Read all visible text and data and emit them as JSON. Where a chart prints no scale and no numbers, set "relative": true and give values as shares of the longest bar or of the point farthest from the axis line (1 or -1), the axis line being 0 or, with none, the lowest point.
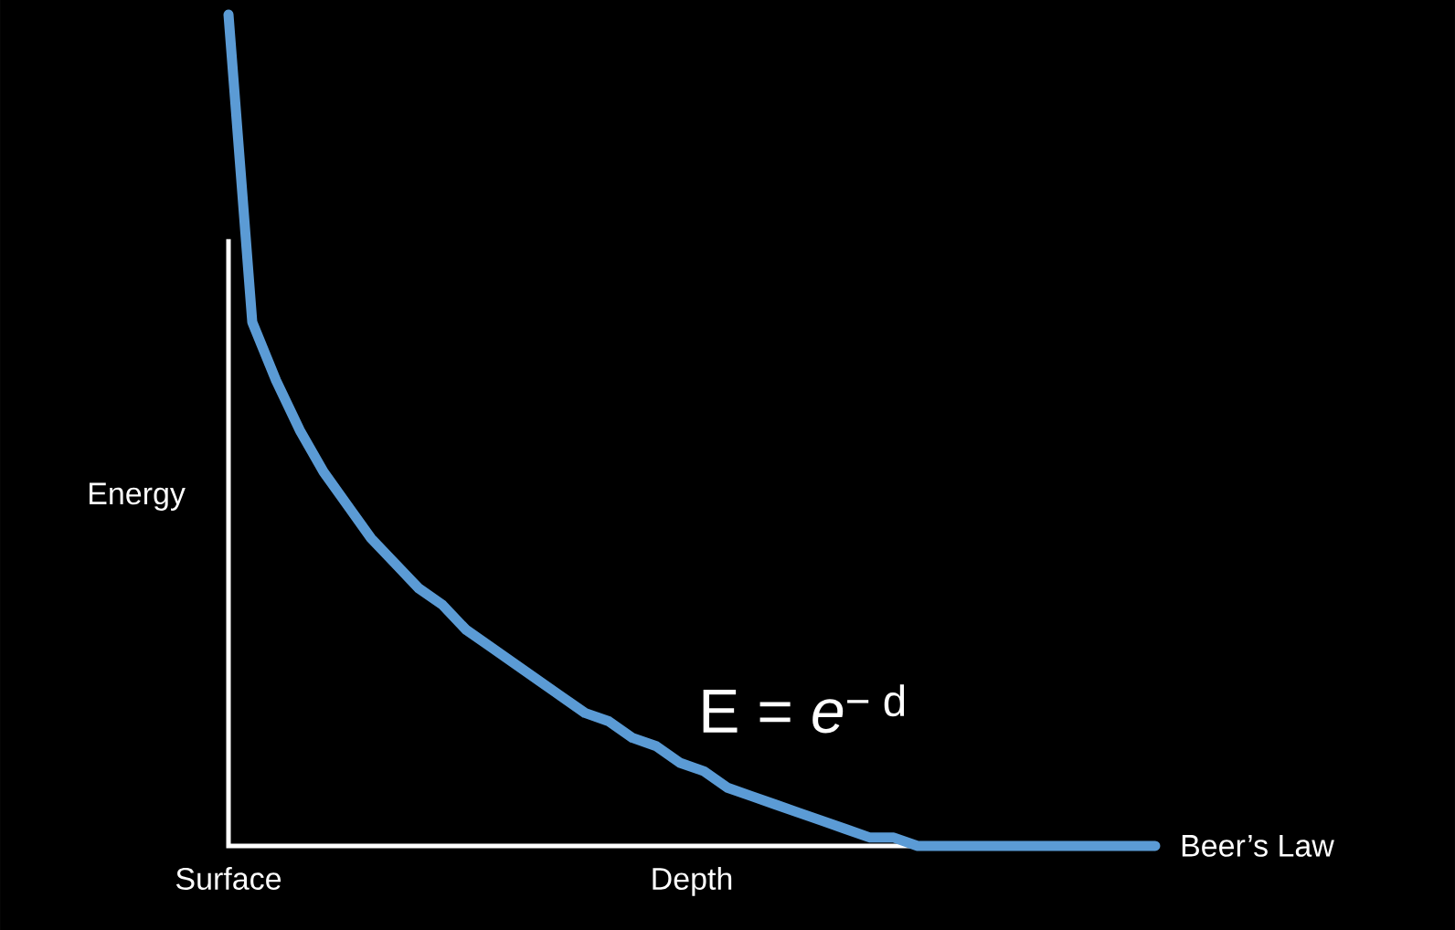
{
  "chart_data": {
    "type": "line",
    "relative": true,
    "color": "#5b9bd5",
    "xlabel": "Depth",
    "ylabel": "Energy",
    "categories": [
      null,
      null,
      null,
      null,
      null,
      null,
      null,
      null,
      null,
      null,
      null,
      null,
      null,
      null,
      null,
      null,
      null,
      null,
      null,
      null,
      null,
      null,
      null,
      null,
      null,
      null,
      null,
      null,
      null,
      null,
      null,
      null,
      null,
      null,
      null,
      null,
      null,
      null,
      null,
      null
    ],
    "values": [
      1,
      0.63,
      0.56,
      0.5,
      0.45,
      0.41,
      0.37,
      0.34,
      0.31,
      0.29,
      0.26,
      0.24,
      0.22,
      0.2,
      0.18,
      0.16,
      0.15,
      0.13,
      0.12,
      0.1,
      0.09,
      0.07,
      0.06,
      0.05,
      0.04,
      0.03,
      0.02,
      0.01,
      0.01,
      0,
      0,
      0,
      0,
      0,
      0,
      0,
      0,
      0,
      0,
      0
    ],
    "annotations": [
      "Surface",
      "E = *e*$^{− d}$",
      "Beer’s Law"
    ]
  }
}
